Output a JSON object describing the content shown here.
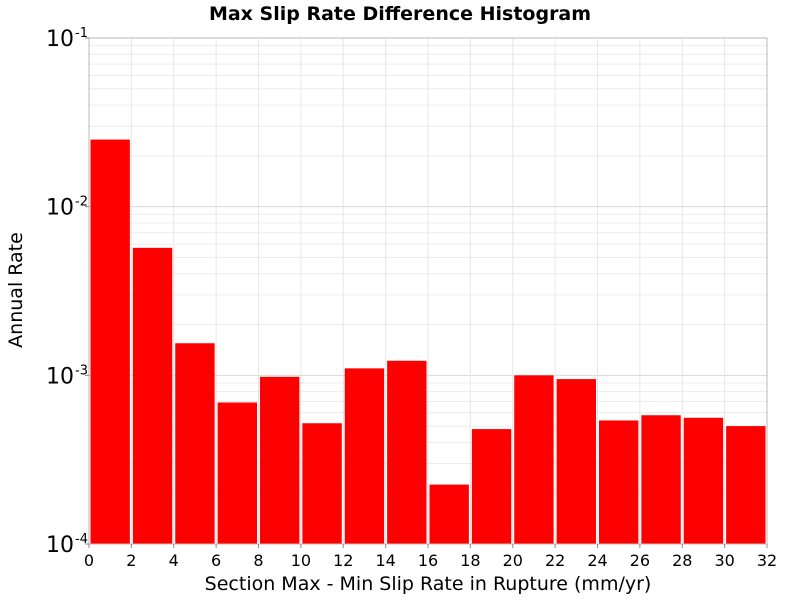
{
  "chart_data": {
    "type": "bar",
    "title": "Max Slip Rate Difference Histogram",
    "xlabel": "Section Max - Min Slip Rate in Rupture (mm/yr)",
    "ylabel": "Annual Rate",
    "x_scale": "linear",
    "y_scale": "log",
    "xlim": [
      0,
      32
    ],
    "ylim": [
      0.0001,
      0.1
    ],
    "grid": true,
    "bar_color": "#ff0000",
    "bin_width": 2,
    "x_ticks": [
      "0",
      "2",
      "4",
      "6",
      "8",
      "10",
      "12",
      "14",
      "16",
      "18",
      "20",
      "22",
      "24",
      "26",
      "28",
      "30",
      "32"
    ],
    "y_ticks": [
      {
        "base": "10",
        "exp": "-1"
      },
      {
        "base": "10",
        "exp": "-2"
      },
      {
        "base": "10",
        "exp": "-3"
      },
      {
        "base": "10",
        "exp": "-4"
      }
    ],
    "bins": [
      {
        "x0": 0,
        "x1": 2,
        "value": 0.025
      },
      {
        "x0": 2,
        "x1": 4,
        "value": 0.0057
      },
      {
        "x0": 4,
        "x1": 6,
        "value": 0.00155
      },
      {
        "x0": 6,
        "x1": 8,
        "value": 0.00069
      },
      {
        "x0": 8,
        "x1": 10,
        "value": 0.00098
      },
      {
        "x0": 10,
        "x1": 12,
        "value": 0.00052
      },
      {
        "x0": 12,
        "x1": 14,
        "value": 0.0011
      },
      {
        "x0": 14,
        "x1": 16,
        "value": 0.00122
      },
      {
        "x0": 16,
        "x1": 18,
        "value": 0.000225
      },
      {
        "x0": 18,
        "x1": 20,
        "value": 0.00048
      },
      {
        "x0": 20,
        "x1": 22,
        "value": 0.001
      },
      {
        "x0": 22,
        "x1": 24,
        "value": 0.00095
      },
      {
        "x0": 24,
        "x1": 26,
        "value": 0.00054
      },
      {
        "x0": 26,
        "x1": 28,
        "value": 0.00058
      },
      {
        "x0": 28,
        "x1": 30,
        "value": 0.00056
      },
      {
        "x0": 30,
        "x1": 32,
        "value": 0.0005
      }
    ]
  }
}
